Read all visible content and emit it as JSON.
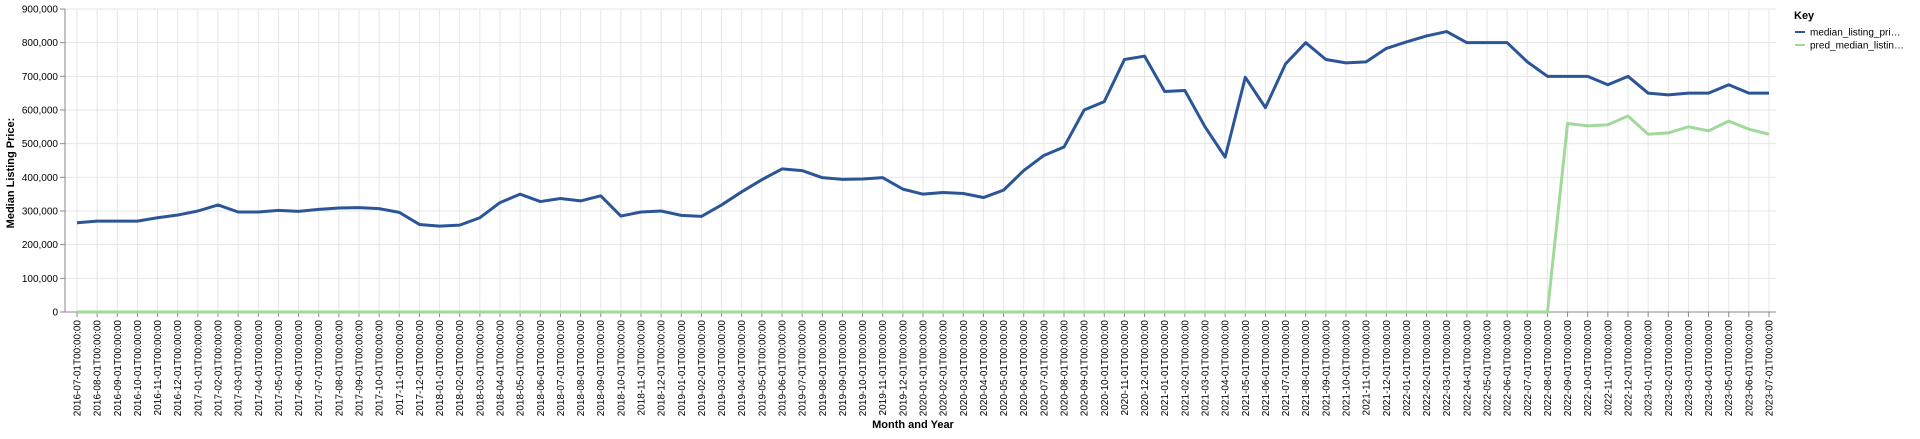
{
  "chart_data": {
    "type": "line",
    "xlabel": "Month and Year",
    "ylabel": "Median Listing Price:",
    "ylim": [
      0,
      900000
    ],
    "yticks": [
      "0",
      "100,000",
      "200,000",
      "300,000",
      "400,000",
      "500,000",
      "600,000",
      "700,000",
      "800,000",
      "900,000"
    ],
    "grid": true,
    "legend": {
      "title": "Key",
      "position": "top-right"
    },
    "x": [
      "2016-07-01T00:00:00",
      "2016-08-01T00:00:00",
      "2016-09-01T00:00:00",
      "2016-10-01T00:00:00",
      "2016-11-01T00:00:00",
      "2016-12-01T00:00:00",
      "2017-01-01T00:00:00",
      "2017-02-01T00:00:00",
      "2017-03-01T00:00:00",
      "2017-04-01T00:00:00",
      "2017-05-01T00:00:00",
      "2017-06-01T00:00:00",
      "2017-07-01T00:00:00",
      "2017-08-01T00:00:00",
      "2017-09-01T00:00:00",
      "2017-10-01T00:00:00",
      "2017-11-01T00:00:00",
      "2017-12-01T00:00:00",
      "2018-01-01T00:00:00",
      "2018-02-01T00:00:00",
      "2018-03-01T00:00:00",
      "2018-04-01T00:00:00",
      "2018-05-01T00:00:00",
      "2018-06-01T00:00:00",
      "2018-07-01T00:00:00",
      "2018-08-01T00:00:00",
      "2018-09-01T00:00:00",
      "2018-10-01T00:00:00",
      "2018-11-01T00:00:00",
      "2018-12-01T00:00:00",
      "2019-01-01T00:00:00",
      "2019-02-01T00:00:00",
      "2019-03-01T00:00:00",
      "2019-04-01T00:00:00",
      "2019-05-01T00:00:00",
      "2019-06-01T00:00:00",
      "2019-07-01T00:00:00",
      "2019-08-01T00:00:00",
      "2019-09-01T00:00:00",
      "2019-10-01T00:00:00",
      "2019-11-01T00:00:00",
      "2019-12-01T00:00:00",
      "2020-01-01T00:00:00",
      "2020-02-01T00:00:00",
      "2020-03-01T00:00:00",
      "2020-04-01T00:00:00",
      "2020-05-01T00:00:00",
      "2020-06-01T00:00:00",
      "2020-07-01T00:00:00",
      "2020-08-01T00:00:00",
      "2020-09-01T00:00:00",
      "2020-10-01T00:00:00",
      "2020-11-01T00:00:00",
      "2020-12-01T00:00:00",
      "2021-01-01T00:00:00",
      "2021-02-01T00:00:00",
      "2021-03-01T00:00:00",
      "2021-04-01T00:00:00",
      "2021-05-01T00:00:00",
      "2021-06-01T00:00:00",
      "2021-07-01T00:00:00",
      "2021-08-01T00:00:00",
      "2021-09-01T00:00:00",
      "2021-10-01T00:00:00",
      "2021-11-01T00:00:00",
      "2021-12-01T00:00:00",
      "2022-01-01T00:00:00",
      "2022-02-01T00:00:00",
      "2022-03-01T00:00:00",
      "2022-04-01T00:00:00",
      "2022-05-01T00:00:00",
      "2022-06-01T00:00:00",
      "2022-07-01T00:00:00",
      "2022-08-01T00:00:00",
      "2022-09-01T00:00:00",
      "2022-10-01T00:00:00",
      "2022-11-01T00:00:00",
      "2022-12-01T00:00:00",
      "2023-01-01T00:00:00",
      "2023-02-01T00:00:00",
      "2023-03-01T00:00:00",
      "2023-04-01T00:00:00",
      "2023-05-01T00:00:00",
      "2023-06-01T00:00:00",
      "2023-07-01T00:00:00"
    ],
    "series": [
      {
        "name": "median_listing_pri…",
        "color": "#2c5597",
        "values": [
          265000,
          270000,
          270000,
          270000,
          280000,
          288000,
          300000,
          318000,
          297000,
          297000,
          302000,
          299000,
          305000,
          309000,
          310000,
          307000,
          296000,
          260000,
          255000,
          258000,
          280000,
          325000,
          350000,
          328000,
          337000,
          330000,
          345000,
          285000,
          297000,
          300000,
          287000,
          284000,
          318000,
          357000,
          393000,
          425000,
          420000,
          399000,
          394000,
          395000,
          399000,
          365000,
          350000,
          355000,
          352000,
          340000,
          362000,
          420000,
          465000,
          490000,
          600000,
          625000,
          750000,
          760000,
          655000,
          658000,
          550000,
          460000,
          697000,
          607000,
          737000,
          800000,
          750000,
          740000,
          743000,
          783000,
          802000,
          820000,
          833000,
          800000,
          800000,
          800000,
          743000,
          700000,
          700000,
          700000,
          675000,
          700000,
          650000,
          645000,
          650000,
          650000,
          675000,
          650000,
          650000
        ]
      },
      {
        "name": "pred_median_listin…",
        "color": "#a1d99b",
        "values": [
          0,
          0,
          0,
          0,
          0,
          0,
          0,
          0,
          0,
          0,
          0,
          0,
          0,
          0,
          0,
          0,
          0,
          0,
          0,
          0,
          0,
          0,
          0,
          0,
          0,
          0,
          0,
          0,
          0,
          0,
          0,
          0,
          0,
          0,
          0,
          0,
          0,
          0,
          0,
          0,
          0,
          0,
          0,
          0,
          0,
          0,
          0,
          0,
          0,
          0,
          0,
          0,
          0,
          0,
          0,
          0,
          0,
          0,
          0,
          0,
          0,
          0,
          0,
          0,
          0,
          0,
          0,
          0,
          0,
          0,
          0,
          0,
          0,
          0,
          560000,
          553000,
          556000,
          582000,
          528000,
          532000,
          550000,
          538000,
          567000,
          543000,
          528000
        ]
      }
    ]
  }
}
